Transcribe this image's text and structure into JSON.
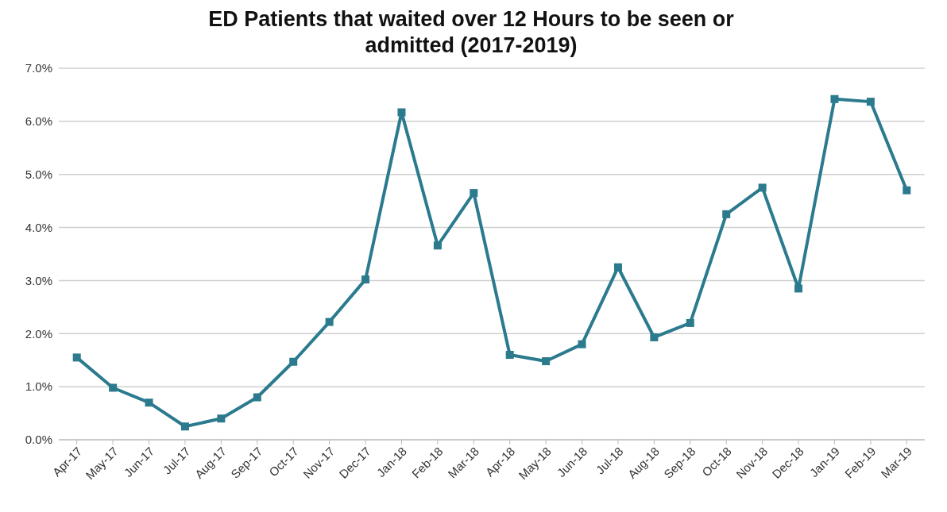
{
  "chart_data": {
    "type": "line",
    "title": "ED Patients that waited over 12 Hours to be seen or admitted (2017-2019)",
    "categories": [
      "Apr-17",
      "May-17",
      "Jun-17",
      "Jul-17",
      "Aug-17",
      "Sep-17",
      "Oct-17",
      "Nov-17",
      "Dec-17",
      "Jan-18",
      "Feb-18",
      "Mar-18",
      "Apr-18",
      "May-18",
      "Jun-18",
      "Jul-18",
      "Aug-18",
      "Sep-18",
      "Oct-18",
      "Nov-18",
      "Dec-18",
      "Jan-19",
      "Feb-19",
      "Mar-19"
    ],
    "series": [
      {
        "color": "#2b7a8e",
        "values": [
          1.55,
          0.98,
          0.7,
          0.25,
          0.4,
          0.8,
          1.47,
          2.22,
          3.02,
          6.17,
          3.66,
          4.65,
          1.6,
          1.48,
          1.8,
          3.25,
          1.93,
          2.2,
          4.25,
          4.75,
          2.85,
          6.42,
          6.37,
          4.7
        ]
      }
    ],
    "ylim": [
      0,
      7
    ],
    "yticks": [
      {
        "value": 0,
        "label": "0.0%"
      },
      {
        "value": 1,
        "label": "1.0%"
      },
      {
        "value": 2,
        "label": "2.0%"
      },
      {
        "value": 3,
        "label": "3.0%"
      },
      {
        "value": 4,
        "label": "4.0%"
      },
      {
        "value": 5,
        "label": "5.0%"
      },
      {
        "value": 6,
        "label": "6.0%"
      },
      {
        "value": 7,
        "label": "7.0%"
      }
    ],
    "grid": "y",
    "marker": "square",
    "line_style": "solid",
    "legend": false
  }
}
